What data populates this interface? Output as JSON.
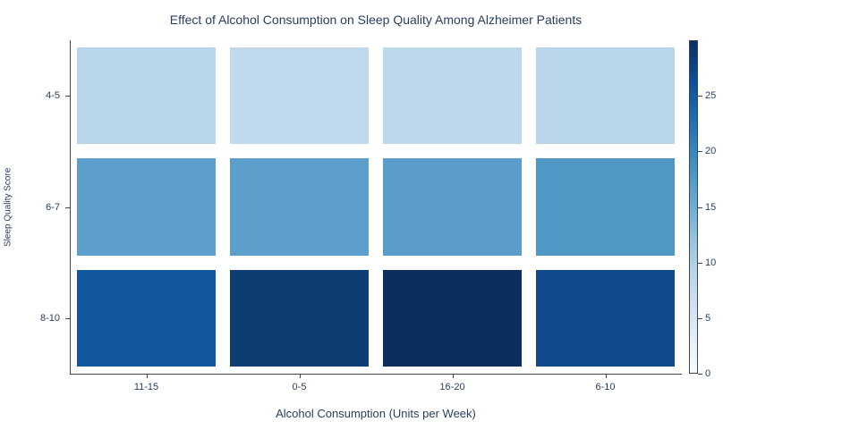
{
  "chart_data": {
    "type": "heatmap",
    "title": "Effect of Alcohol Consumption on Sleep Quality Among Alzheimer Patients",
    "xlabel": "Alcohol Consumption (Units per Week)",
    "ylabel": "Sleep Quality Score",
    "x_categories": [
      "11-15",
      "0-5",
      "16-20",
      "6-10"
    ],
    "y_categories": [
      "4-5",
      "6-7",
      "8-10"
    ],
    "z": [
      [
        10,
        9,
        9,
        10
      ],
      [
        16,
        16,
        16,
        17
      ],
      [
        22,
        26,
        29,
        24
      ]
    ],
    "cell_colors": [
      [
        "#b9d5ea",
        "#c0d9ec",
        "#bed8eb",
        "#b9d5ea"
      ],
      [
        "#5c9fca",
        "#5c9fca",
        "#599dc8",
        "#4f97c5"
      ],
      [
        "#13589e",
        "#0e3d74",
        "#0b2e5d",
        "#11498a"
      ]
    ],
    "colorbar": {
      "min": 0,
      "max": 30,
      "ticks": [
        0,
        5,
        10,
        15,
        20,
        25
      ],
      "gradient_stops": [
        "#f7fbff",
        "#deebf7",
        "#c6dbef",
        "#9ecae1",
        "#6baed6",
        "#4292c6",
        "#2171b5",
        "#08519c",
        "#08306b"
      ]
    },
    "legend": "none",
    "grid": false
  }
}
